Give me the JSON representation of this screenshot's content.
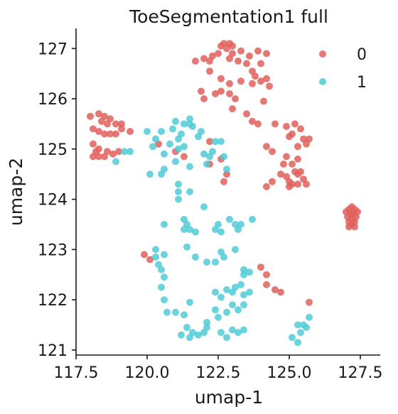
{
  "chart_data": {
    "type": "scatter",
    "title": "ToeSegmentation1 full",
    "xlabel": "umap-1",
    "ylabel": "umap-2",
    "xlim": [
      117.5,
      128.2
    ],
    "ylim": [
      120.9,
      127.4
    ],
    "xticks": [
      "117.5",
      "120.0",
      "122.5",
      "125.0",
      "127.5"
    ],
    "yticks": [
      "121",
      "122",
      "123",
      "124",
      "125",
      "126",
      "127"
    ],
    "legend_position": "top-right",
    "grid": false,
    "series": [
      {
        "name": "0",
        "color": "#e0605c",
        "points": [
          [
            122.7,
            127.1
          ],
          [
            122.9,
            127.1
          ],
          [
            123.0,
            127.05
          ],
          [
            122.8,
            127.0
          ],
          [
            122.6,
            127.05
          ],
          [
            123.3,
            126.95
          ],
          [
            123.0,
            126.9
          ],
          [
            122.5,
            126.9
          ],
          [
            122.3,
            126.85
          ],
          [
            122.9,
            126.8
          ],
          [
            122.2,
            126.75
          ],
          [
            123.2,
            126.75
          ],
          [
            123.6,
            126.85
          ],
          [
            123.9,
            126.95
          ],
          [
            124.2,
            126.9
          ],
          [
            123.5,
            126.7
          ],
          [
            124.0,
            126.7
          ],
          [
            122.0,
            126.8
          ],
          [
            121.7,
            126.75
          ],
          [
            123.7,
            126.55
          ],
          [
            122.2,
            126.55
          ],
          [
            123.8,
            126.45
          ],
          [
            124.0,
            126.35
          ],
          [
            124.2,
            126.4
          ],
          [
            124.3,
            126.25
          ],
          [
            122.6,
            126.4
          ],
          [
            122.9,
            126.3
          ],
          [
            123.3,
            126.35
          ],
          [
            123.7,
            126.3
          ],
          [
            122.9,
            126.1
          ],
          [
            122.6,
            126.15
          ],
          [
            122.4,
            126.1
          ],
          [
            121.9,
            126.15
          ],
          [
            122.0,
            126.0
          ],
          [
            123.1,
            126.0
          ],
          [
            124.1,
            125.95
          ],
          [
            123.0,
            125.8
          ],
          [
            123.5,
            125.7
          ],
          [
            123.9,
            125.5
          ],
          [
            123.7,
            125.55
          ],
          [
            124.5,
            125.5
          ],
          [
            118.0,
            125.65
          ],
          [
            118.3,
            125.7
          ],
          [
            118.5,
            125.65
          ],
          [
            118.7,
            125.6
          ],
          [
            118.4,
            125.55
          ],
          [
            118.6,
            125.5
          ],
          [
            118.9,
            125.5
          ],
          [
            119.1,
            125.5
          ],
          [
            118.1,
            125.4
          ],
          [
            118.3,
            125.35
          ],
          [
            118.5,
            125.3
          ],
          [
            118.7,
            125.3
          ],
          [
            118.9,
            125.3
          ],
          [
            119.1,
            125.4
          ],
          [
            119.4,
            125.35
          ],
          [
            118.1,
            125.1
          ],
          [
            118.3,
            125.0
          ],
          [
            118.2,
            124.95
          ],
          [
            118.6,
            124.95
          ],
          [
            118.8,
            124.9
          ],
          [
            119.0,
            124.95
          ],
          [
            118.5,
            124.85
          ],
          [
            118.3,
            124.85
          ],
          [
            118.1,
            124.85
          ],
          [
            124.9,
            125.45
          ],
          [
            125.2,
            125.5
          ],
          [
            125.4,
            125.4
          ],
          [
            125.1,
            125.3
          ],
          [
            125.5,
            125.2
          ],
          [
            125.6,
            125.1
          ],
          [
            125.3,
            125.05
          ],
          [
            125.7,
            125.2
          ],
          [
            125.0,
            125.25
          ],
          [
            124.2,
            125.05
          ],
          [
            124.4,
            124.95
          ],
          [
            124.9,
            124.85
          ],
          [
            125.3,
            124.8
          ],
          [
            125.1,
            124.7
          ],
          [
            124.8,
            124.7
          ],
          [
            124.7,
            124.5
          ],
          [
            124.9,
            124.45
          ],
          [
            125.2,
            124.55
          ],
          [
            125.3,
            124.5
          ],
          [
            125.4,
            124.55
          ],
          [
            125.5,
            124.4
          ],
          [
            125.1,
            124.3
          ],
          [
            125.0,
            124.25
          ],
          [
            124.4,
            124.35
          ],
          [
            124.2,
            124.25
          ],
          [
            125.6,
            124.3
          ],
          [
            125.3,
            124.3
          ],
          [
            125.0,
            124.35
          ],
          [
            122.2,
            125.15
          ],
          [
            122.6,
            124.8
          ],
          [
            122.2,
            124.7
          ],
          [
            122.8,
            124.5
          ],
          [
            122.7,
            124.35
          ],
          [
            120.4,
            125.1
          ],
          [
            121.0,
            124.95
          ],
          [
            121.3,
            124.85
          ],
          [
            127.1,
            123.8
          ],
          [
            127.2,
            123.85
          ],
          [
            127.3,
            123.8
          ],
          [
            127.15,
            123.7
          ],
          [
            127.25,
            123.7
          ],
          [
            127.05,
            123.65
          ],
          [
            127.35,
            123.65
          ],
          [
            127.2,
            123.6
          ],
          [
            127.1,
            123.55
          ],
          [
            127.3,
            123.55
          ],
          [
            127.0,
            123.75
          ],
          [
            127.4,
            123.75
          ],
          [
            127.2,
            123.5
          ],
          [
            127.3,
            123.45
          ],
          [
            127.1,
            123.45
          ],
          [
            119.9,
            122.9
          ],
          [
            120.1,
            122.8
          ],
          [
            124.0,
            122.65
          ],
          [
            124.2,
            122.5
          ],
          [
            124.5,
            122.2
          ],
          [
            124.7,
            122.15
          ],
          [
            124.2,
            122.3
          ],
          [
            125.7,
            121.95
          ]
        ]
      },
      {
        "name": "1",
        "color": "#50cbd6",
        "points": [
          [
            120.0,
            125.35
          ],
          [
            120.5,
            125.35
          ],
          [
            120.9,
            125.4
          ],
          [
            121.2,
            125.3
          ],
          [
            121.5,
            125.5
          ],
          [
            121.8,
            125.25
          ],
          [
            121.0,
            125.55
          ],
          [
            121.3,
            125.5
          ],
          [
            121.5,
            125.6
          ],
          [
            120.2,
            125.05
          ],
          [
            120.3,
            125.2
          ],
          [
            120.6,
            124.9
          ],
          [
            120.8,
            125.1
          ],
          [
            121.1,
            125.0
          ],
          [
            121.3,
            125.05
          ],
          [
            121.0,
            124.75
          ],
          [
            120.6,
            124.6
          ],
          [
            120.1,
            124.5
          ],
          [
            120.5,
            124.5
          ],
          [
            119.4,
            124.95
          ],
          [
            119.2,
            124.95
          ],
          [
            118.9,
            124.75
          ],
          [
            121.1,
            125.2
          ],
          [
            121.6,
            125.45
          ],
          [
            121.9,
            125.35
          ],
          [
            122.4,
            125.15
          ],
          [
            122.6,
            125.15
          ],
          [
            122.0,
            124.9
          ],
          [
            122.2,
            124.85
          ],
          [
            122.3,
            124.95
          ],
          [
            122.7,
            124.85
          ],
          [
            122.8,
            124.6
          ],
          [
            121.5,
            124.65
          ],
          [
            122.1,
            124.7
          ],
          [
            121.1,
            124.3
          ],
          [
            121.1,
            124.15
          ],
          [
            121.5,
            124.15
          ],
          [
            121.1,
            124.0
          ],
          [
            122.0,
            123.85
          ],
          [
            121.3,
            123.6
          ],
          [
            121.4,
            123.5
          ],
          [
            121.5,
            123.4
          ],
          [
            121.3,
            123.4
          ],
          [
            121.7,
            123.35
          ],
          [
            122.4,
            123.4
          ],
          [
            122.5,
            123.5
          ],
          [
            122.6,
            123.35
          ],
          [
            122.9,
            123.6
          ],
          [
            123.2,
            123.4
          ],
          [
            123.1,
            123.5
          ],
          [
            123.3,
            123.5
          ],
          [
            123.7,
            123.6
          ],
          [
            120.6,
            123.5
          ],
          [
            121.4,
            123.05
          ],
          [
            120.3,
            123.0
          ],
          [
            120.3,
            122.85
          ],
          [
            120.4,
            122.7
          ],
          [
            120.6,
            122.9
          ],
          [
            120.5,
            122.6
          ],
          [
            120.6,
            122.45
          ],
          [
            121.7,
            122.85
          ],
          [
            122.1,
            122.75
          ],
          [
            122.4,
            122.75
          ],
          [
            122.7,
            122.85
          ],
          [
            122.6,
            122.95
          ],
          [
            123.1,
            123.0
          ],
          [
            123.4,
            122.6
          ],
          [
            123.6,
            122.55
          ],
          [
            123.4,
            122.5
          ],
          [
            122.4,
            122.15
          ],
          [
            122.6,
            122.05
          ],
          [
            122.8,
            122.2
          ],
          [
            123.0,
            122.15
          ],
          [
            123.1,
            122.25
          ],
          [
            123.3,
            122.3
          ],
          [
            123.4,
            122.1
          ],
          [
            123.6,
            122.15
          ],
          [
            120.5,
            122.25
          ],
          [
            120.6,
            122.0
          ],
          [
            120.7,
            121.75
          ],
          [
            121.0,
            121.75
          ],
          [
            121.3,
            121.7
          ],
          [
            121.5,
            121.95
          ],
          [
            122.4,
            121.8
          ],
          [
            122.5,
            121.65
          ],
          [
            122.8,
            121.75
          ],
          [
            123.0,
            121.9
          ],
          [
            123.2,
            121.8
          ],
          [
            123.4,
            121.9
          ],
          [
            122.1,
            121.45
          ],
          [
            121.4,
            121.45
          ],
          [
            121.6,
            121.35
          ],
          [
            121.8,
            121.3
          ],
          [
            122.0,
            121.35
          ],
          [
            122.1,
            121.55
          ],
          [
            121.5,
            121.25
          ],
          [
            121.2,
            121.3
          ],
          [
            122.6,
            121.35
          ],
          [
            123.0,
            121.4
          ],
          [
            123.2,
            121.35
          ],
          [
            123.4,
            121.4
          ],
          [
            122.8,
            121.25
          ],
          [
            125.1,
            121.25
          ],
          [
            125.4,
            121.35
          ],
          [
            125.5,
            121.5
          ],
          [
            125.6,
            121.45
          ],
          [
            125.7,
            121.65
          ],
          [
            125.3,
            121.5
          ],
          [
            125.3,
            121.15
          ]
        ]
      }
    ]
  }
}
